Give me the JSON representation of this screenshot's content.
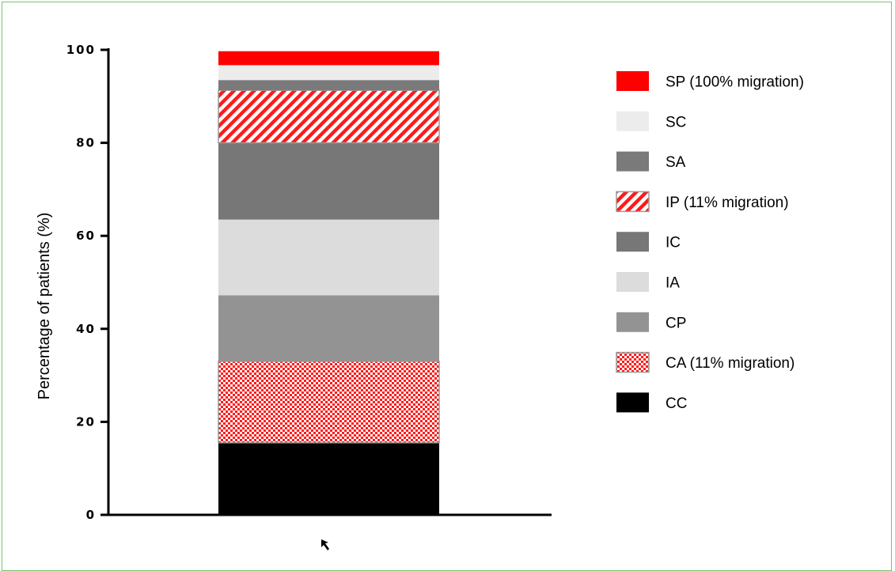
{
  "chart_data": {
    "type": "bar",
    "stacked": true,
    "categories": [
      ""
    ],
    "ylabel": "Percentage of patients (%)",
    "xlabel": "",
    "ylim": [
      0,
      100
    ],
    "yticks": [
      0,
      20,
      40,
      60,
      80,
      100
    ],
    "grid": false,
    "legend_position": "right",
    "series": [
      {
        "name": "CC",
        "values": [
          15.5
        ],
        "color": "#000000",
        "pattern": "solid"
      },
      {
        "name": "CA (11% migration)",
        "values": [
          17.5
        ],
        "color": "#ff1a1a",
        "pattern": "checker"
      },
      {
        "name": "CP",
        "values": [
          14.2
        ],
        "color": "#939393",
        "pattern": "solid"
      },
      {
        "name": "IA",
        "values": [
          16.3
        ],
        "color": "#dcdcdc",
        "pattern": "solid"
      },
      {
        "name": "IC",
        "values": [
          16.5
        ],
        "color": "#777777",
        "pattern": "solid"
      },
      {
        "name": "IP (11% migration)",
        "values": [
          11.3
        ],
        "color": "#ff1a1a",
        "pattern": "hatch"
      },
      {
        "name": "SA",
        "values": [
          2.2
        ],
        "color": "#7a7a7a",
        "pattern": "solid"
      },
      {
        "name": "SC",
        "values": [
          3.2
        ],
        "color": "#ececec",
        "pattern": "solid"
      },
      {
        "name": "SP (100% migration)",
        "values": [
          3.0
        ],
        "color": "#ff0000",
        "pattern": "solid"
      }
    ]
  }
}
